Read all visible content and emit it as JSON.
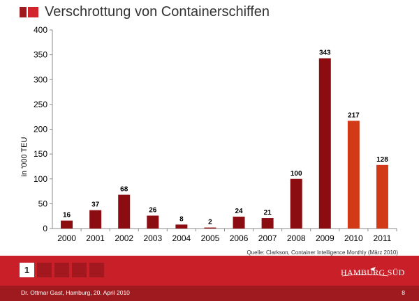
{
  "header": {
    "title": "Verschrottung von Containerschiffen"
  },
  "chart_data": {
    "type": "bar",
    "title": "Verschrottung von Containerschiffen",
    "ylabel": "in '000 TEU",
    "xlabel": "",
    "categories": [
      "2000",
      "2001",
      "2002",
      "2003",
      "2004",
      "2005",
      "2006",
      "2007",
      "2008",
      "2009",
      "2010",
      "2011"
    ],
    "values": [
      16,
      37,
      68,
      26,
      8,
      2,
      24,
      21,
      100,
      343,
      217,
      128
    ],
    "value_labels": [
      "16",
      "37",
      "68",
      "26",
      "8",
      "2",
      "24",
      "21",
      "100",
      "343",
      "217",
      "128"
    ],
    "bar_colors": [
      "#8b0d12",
      "#8b0d12",
      "#8b0d12",
      "#8b0d12",
      "#8b0d12",
      "#8b0d12",
      "#8b0d12",
      "#8b0d12",
      "#8b0d12",
      "#8b0d12",
      "#d23a17",
      "#d23a17"
    ],
    "ylim": [
      0,
      400
    ],
    "yticks": [
      "0",
      "50",
      "100",
      "150",
      "200",
      "250",
      "300",
      "350",
      "400"
    ],
    "grid": false,
    "legend": "none"
  },
  "source": "Quelle: Clarkson, Container Intelligence Monthly (März 2010)",
  "pager": {
    "current": "1",
    "total_boxes": 5
  },
  "logo": {
    "text": "HAMBURG SÜD"
  },
  "footer": {
    "left": "Dr. Ottmar Gast, Hamburg, 20. April 2010",
    "page": "8"
  },
  "colors": {
    "brand_red": "#c81f28",
    "dark_red": "#9e1a1e",
    "bar_dark": "#8b0d12",
    "bar_forecast": "#d23a17"
  }
}
